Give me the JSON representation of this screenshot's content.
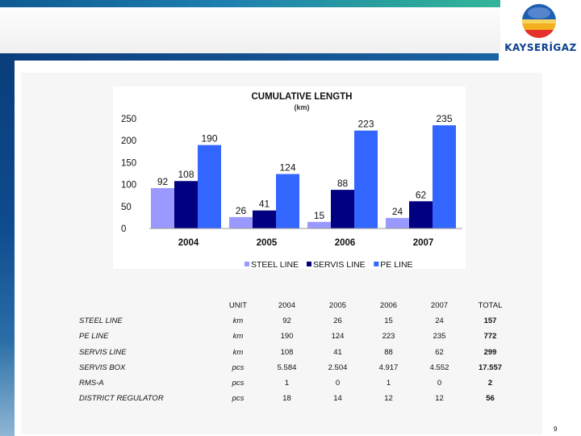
{
  "logo": {
    "brand": "KAYSERİGAZ"
  },
  "chart_data": {
    "type": "bar",
    "title": "CUMULATIVE LENGTH",
    "subtitle": "(km)",
    "categories": [
      "2004",
      "2005",
      "2006",
      "2007"
    ],
    "series": [
      {
        "name": "STEEL LINE",
        "color": "#9999ff",
        "values": [
          92,
          26,
          15,
          24
        ]
      },
      {
        "name": "SERVIS LINE",
        "color": "#000080",
        "values": [
          108,
          41,
          88,
          62
        ]
      },
      {
        "name": "PE LINE",
        "color": "#3366ff",
        "values": [
          190,
          124,
          223,
          235
        ]
      }
    ],
    "yticks": [
      0,
      50,
      100,
      150,
      200,
      250
    ],
    "ylim": [
      0,
      250
    ],
    "legend_position": "bottom"
  },
  "table": {
    "headers": [
      "",
      "UNIT",
      "2004",
      "2005",
      "2006",
      "2007",
      "TOTAL"
    ],
    "rows": [
      {
        "label": "STEEL LINE",
        "unit": "km",
        "values": [
          "92",
          "26",
          "15",
          "24"
        ],
        "total": "157"
      },
      {
        "label": "PE LINE",
        "unit": "km",
        "values": [
          "190",
          "124",
          "223",
          "235"
        ],
        "total": "772"
      },
      {
        "label": "SERVIS LINE",
        "unit": "km",
        "values": [
          "108",
          "41",
          "88",
          "62"
        ],
        "total": "299"
      },
      {
        "label": "SERVIS BOX",
        "unit": "pcs",
        "values": [
          "5.584",
          "2.504",
          "4.917",
          "4.552"
        ],
        "total": "17.557"
      },
      {
        "label": "RMS-A",
        "unit": "pcs",
        "values": [
          "1",
          "0",
          "1",
          "0"
        ],
        "total": "2"
      },
      {
        "label": "DISTRICT REGULATOR",
        "unit": "pcs",
        "values": [
          "18",
          "14",
          "12",
          "12"
        ],
        "total": "56"
      }
    ]
  },
  "page_number": "9"
}
